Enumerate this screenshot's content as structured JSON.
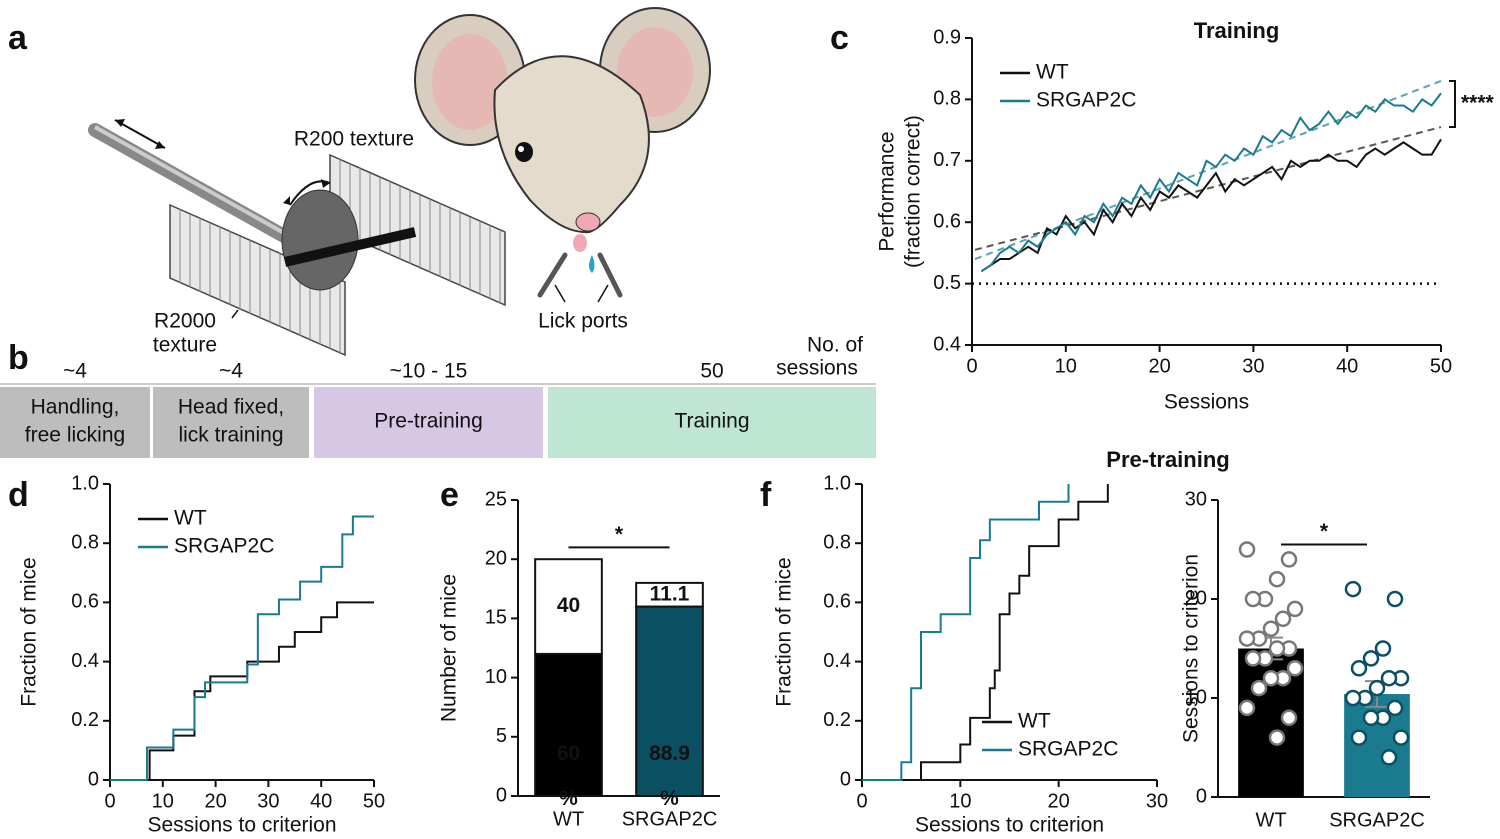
{
  "panels": [
    "a",
    "b",
    "c",
    "d",
    "e",
    "f"
  ],
  "diagram": {
    "labels": [
      "R200 texture",
      [
        "R2000",
        "texture"
      ],
      "Lick ports"
    ]
  },
  "timeline": {
    "header": [
      "No. of",
      "sessions"
    ],
    "stages": [
      {
        "count": "~4",
        "label": [
          "Handling,",
          "free licking"
        ]
      },
      {
        "count": "~4",
        "label": [
          "Head fixed,",
          "lick training"
        ]
      },
      {
        "count": "~10 - 15",
        "label": [
          "Pre-training"
        ]
      },
      {
        "count": "50",
        "label": [
          "Training"
        ]
      }
    ]
  },
  "chart_data": [
    {
      "type": "line",
      "title": "Training",
      "xlabel": "Sessions",
      "ylabel": [
        "Performance",
        "(fraction correct)"
      ],
      "xlim": [
        0,
        50
      ],
      "xticks": [
        0,
        10,
        20,
        30,
        40,
        50
      ],
      "ylim": [
        0.4,
        0.9
      ],
      "yticks": [
        0.4,
        0.5,
        0.6,
        0.7,
        0.8,
        0.9
      ],
      "legend": "upper left",
      "reference_line": 0.5,
      "annotation": "****",
      "x": [
        1,
        2,
        3,
        4,
        5,
        6,
        7,
        8,
        9,
        10,
        11,
        12,
        13,
        14,
        15,
        16,
        17,
        18,
        19,
        20,
        21,
        22,
        23,
        24,
        25,
        26,
        27,
        28,
        29,
        30,
        31,
        32,
        33,
        34,
        35,
        36,
        37,
        38,
        39,
        40,
        41,
        42,
        43,
        44,
        45,
        46,
        47,
        48,
        49,
        50
      ],
      "series": [
        {
          "name": "WT",
          "color": "#111111",
          "trend": [
            0.555,
            0.755
          ],
          "values": [
            0.52,
            0.53,
            0.54,
            0.54,
            0.55,
            0.56,
            0.55,
            0.59,
            0.58,
            0.61,
            0.59,
            0.6,
            0.58,
            0.62,
            0.6,
            0.63,
            0.61,
            0.64,
            0.62,
            0.65,
            0.64,
            0.66,
            0.65,
            0.64,
            0.66,
            0.68,
            0.65,
            0.67,
            0.66,
            0.67,
            0.68,
            0.69,
            0.67,
            0.7,
            0.69,
            0.7,
            0.7,
            0.71,
            0.7,
            0.7,
            0.69,
            0.71,
            0.72,
            0.71,
            0.72,
            0.73,
            0.72,
            0.71,
            0.71,
            0.735
          ]
        },
        {
          "name": "SRGAP2C",
          "color": "#1a7a90",
          "trend": [
            0.54,
            0.83
          ],
          "values": [
            0.52,
            0.53,
            0.55,
            0.56,
            0.55,
            0.57,
            0.56,
            0.58,
            0.59,
            0.6,
            0.58,
            0.61,
            0.6,
            0.63,
            0.61,
            0.64,
            0.63,
            0.66,
            0.64,
            0.67,
            0.65,
            0.68,
            0.67,
            0.66,
            0.7,
            0.69,
            0.71,
            0.7,
            0.72,
            0.71,
            0.74,
            0.73,
            0.75,
            0.74,
            0.77,
            0.75,
            0.76,
            0.78,
            0.76,
            0.78,
            0.77,
            0.79,
            0.78,
            0.8,
            0.79,
            0.79,
            0.78,
            0.8,
            0.79,
            0.81
          ]
        }
      ]
    },
    {
      "type": "step",
      "xlabel": "Sessions to criterion",
      "ylabel": [
        "Fraction of mice"
      ],
      "xlim": [
        0,
        50
      ],
      "xticks": [
        0,
        10,
        20,
        30,
        40,
        50
      ],
      "ylim": [
        0,
        1
      ],
      "yticks": [
        0,
        0.2,
        0.4,
        0.6,
        0.8,
        {
          "value": 1,
          "label": "1.0"
        }
      ],
      "legend": "upper left",
      "series": [
        {
          "name": "WT",
          "color": "#111111",
          "x": [
            0,
            7.5,
            12,
            16,
            19,
            26,
            32,
            35,
            40,
            43,
            50
          ],
          "values": [
            0,
            0.1,
            0.15,
            0.3,
            0.35,
            0.4,
            0.45,
            0.5,
            0.55,
            0.6,
            0.6
          ]
        },
        {
          "name": "SRGAP2C",
          "color": "#1a7a90",
          "x": [
            0,
            7,
            12,
            16,
            18,
            26,
            28,
            32,
            36,
            40,
            44,
            46,
            50
          ],
          "values": [
            0,
            0.11,
            0.17,
            0.28,
            0.33,
            0.39,
            0.56,
            0.61,
            0.67,
            0.72,
            0.83,
            0.89,
            0.89
          ]
        }
      ]
    },
    {
      "type": "stacked_bar",
      "ylabel": [
        "Number of mice"
      ],
      "categories": [
        "WT",
        "SRGAP2C"
      ],
      "ylim": [
        0,
        25
      ],
      "yticks": [
        0,
        5,
        10,
        15,
        20,
        25
      ],
      "annotation": "*",
      "series": [
        {
          "colors": [
            "#000000",
            "#0b4f63"
          ],
          "values": [
            12,
            16
          ],
          "labels": [
            [
              "60",
              "%"
            ],
            [
              "88.9",
              "%"
            ]
          ]
        },
        {
          "colors": [
            "#ffffff",
            "#ffffff"
          ],
          "values": [
            8,
            2
          ],
          "labels": [
            [
              "40"
            ],
            [
              "11.1"
            ]
          ]
        }
      ]
    },
    {
      "type": "step",
      "title": "Pre-training",
      "xlabel": "Sessions to criterion",
      "ylabel": [
        "Fraction of mice"
      ],
      "xlim": [
        0,
        30
      ],
      "xticks": [
        0,
        10,
        20,
        30
      ],
      "ylim": [
        0,
        1
      ],
      "yticks": [
        0,
        0.2,
        0.4,
        0.6,
        0.8,
        {
          "value": 1,
          "label": "1.0"
        }
      ],
      "legend": "lower right",
      "series": [
        {
          "name": "WT",
          "color": "#111111",
          "x": [
            0,
            6,
            10,
            11,
            13,
            13.5,
            14,
            15,
            16,
            17,
            20,
            22,
            24,
            25
          ],
          "values": [
            0,
            0.06,
            0.12,
            0.21,
            0.31,
            0.37,
            0.56,
            0.63,
            0.69,
            0.79,
            0.88,
            0.94,
            0.94,
            1
          ]
        },
        {
          "name": "SRGAP2C",
          "color": "#1a7a90",
          "x": [
            0,
            4,
            5,
            6,
            8,
            11,
            12,
            13,
            18,
            21
          ],
          "values": [
            0,
            0.06,
            0.31,
            0.5,
            0.56,
            0.75,
            0.81,
            0.88,
            0.94,
            1
          ]
        }
      ]
    },
    {
      "type": "bar_points",
      "ylabel": [
        "Sessions to criterion"
      ],
      "categories": [
        "WT",
        "SRGAP2C"
      ],
      "ylim": [
        0,
        30
      ],
      "yticks": [
        0,
        10,
        20,
        30
      ],
      "annotation": "*",
      "colors": [
        "#000000",
        "#1a7a90"
      ],
      "point_colors": [
        "#777777",
        "#0b4f63"
      ],
      "values": [
        15,
        10.4
      ],
      "errors": [
        1.1,
        1.3
      ],
      "points": [
        [
          25,
          24,
          22,
          20,
          20,
          19,
          18,
          17,
          16,
          16,
          15,
          15,
          14,
          14,
          13,
          12,
          12,
          11,
          9,
          8,
          6
        ],
        [
          21,
          20,
          15,
          14,
          13,
          12,
          12,
          11,
          10,
          10,
          9,
          8,
          8,
          6,
          6,
          4
        ]
      ]
    }
  ]
}
